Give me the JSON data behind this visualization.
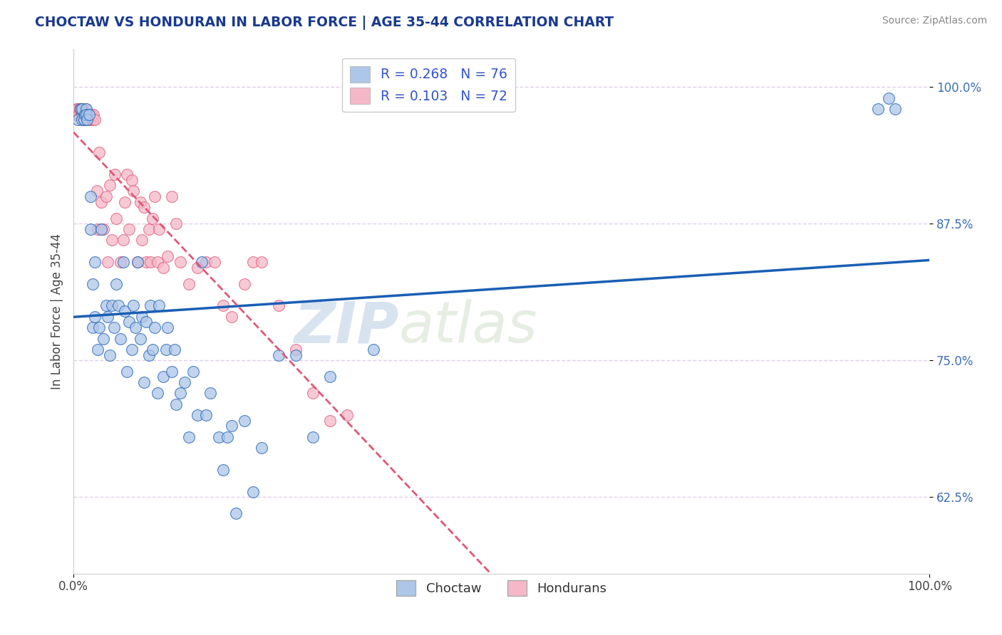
{
  "title": "CHOCTAW VS HONDURAN IN LABOR FORCE | AGE 35-44 CORRELATION CHART",
  "source": "Source: ZipAtlas.com",
  "ylabel": "In Labor Force | Age 35-44",
  "xlim": [
    0.0,
    1.0
  ],
  "ylim": [
    0.555,
    1.035
  ],
  "ytick_values": [
    0.625,
    0.75,
    0.875,
    1.0
  ],
  "ytick_labels": [
    "62.5%",
    "75.0%",
    "87.5%",
    "100.0%"
  ],
  "choctaw_R": 0.268,
  "choctaw_N": 76,
  "honduran_R": 0.103,
  "honduran_N": 72,
  "choctaw_color": "#aec6e8",
  "honduran_color": "#f4b8c8",
  "trend_choctaw_color": "#1a5fb4",
  "trend_honduran_color": "#e05878",
  "watermark_text": "ZIPatlas",
  "background_color": "#ffffff",
  "grid_color": "#e0d0e8",
  "legend_text_color": "#3355cc",
  "choctaw_x": [
    0.005,
    0.008,
    0.01,
    0.01,
    0.012,
    0.013,
    0.015,
    0.015,
    0.016,
    0.018,
    0.02,
    0.02,
    0.022,
    0.022,
    0.025,
    0.025,
    0.028,
    0.03,
    0.032,
    0.035,
    0.038,
    0.04,
    0.042,
    0.045,
    0.047,
    0.05,
    0.052,
    0.055,
    0.058,
    0.06,
    0.062,
    0.065,
    0.068,
    0.07,
    0.072,
    0.075,
    0.078,
    0.08,
    0.082,
    0.085,
    0.088,
    0.09,
    0.092,
    0.095,
    0.098,
    0.1,
    0.105,
    0.108,
    0.11,
    0.115,
    0.118,
    0.12,
    0.125,
    0.13,
    0.135,
    0.14,
    0.145,
    0.15,
    0.155,
    0.16,
    0.17,
    0.175,
    0.18,
    0.185,
    0.19,
    0.2,
    0.21,
    0.22,
    0.24,
    0.26,
    0.28,
    0.3,
    0.35,
    0.94,
    0.952,
    0.96
  ],
  "choctaw_y": [
    0.97,
    0.98,
    0.97,
    0.98,
    0.97,
    0.975,
    0.98,
    0.975,
    0.97,
    0.975,
    0.87,
    0.9,
    0.78,
    0.82,
    0.79,
    0.84,
    0.76,
    0.78,
    0.87,
    0.77,
    0.8,
    0.79,
    0.755,
    0.8,
    0.78,
    0.82,
    0.8,
    0.77,
    0.84,
    0.795,
    0.74,
    0.785,
    0.76,
    0.8,
    0.78,
    0.84,
    0.77,
    0.79,
    0.73,
    0.785,
    0.755,
    0.8,
    0.76,
    0.78,
    0.72,
    0.8,
    0.735,
    0.76,
    0.78,
    0.74,
    0.76,
    0.71,
    0.72,
    0.73,
    0.68,
    0.74,
    0.7,
    0.84,
    0.7,
    0.72,
    0.68,
    0.65,
    0.68,
    0.69,
    0.61,
    0.695,
    0.63,
    0.67,
    0.755,
    0.755,
    0.68,
    0.735,
    0.76,
    0.98,
    0.99,
    0.98
  ],
  "honduran_x": [
    0.002,
    0.003,
    0.004,
    0.005,
    0.006,
    0.007,
    0.008,
    0.009,
    0.01,
    0.01,
    0.011,
    0.012,
    0.013,
    0.014,
    0.015,
    0.016,
    0.017,
    0.018,
    0.019,
    0.02,
    0.021,
    0.022,
    0.023,
    0.025,
    0.027,
    0.028,
    0.03,
    0.032,
    0.035,
    0.038,
    0.04,
    0.042,
    0.045,
    0.048,
    0.05,
    0.055,
    0.058,
    0.06,
    0.062,
    0.065,
    0.068,
    0.07,
    0.075,
    0.078,
    0.08,
    0.082,
    0.085,
    0.088,
    0.09,
    0.092,
    0.095,
    0.098,
    0.1,
    0.105,
    0.11,
    0.115,
    0.12,
    0.125,
    0.135,
    0.145,
    0.155,
    0.165,
    0.175,
    0.185,
    0.2,
    0.21,
    0.22,
    0.24,
    0.26,
    0.28,
    0.3,
    0.32
  ],
  "honduran_y": [
    0.975,
    0.98,
    0.975,
    0.98,
    0.975,
    0.98,
    0.98,
    0.975,
    0.98,
    0.975,
    0.97,
    0.975,
    0.97,
    0.98,
    0.975,
    0.97,
    0.975,
    0.97,
    0.975,
    0.97,
    0.975,
    0.97,
    0.975,
    0.97,
    0.905,
    0.87,
    0.94,
    0.895,
    0.87,
    0.9,
    0.84,
    0.91,
    0.86,
    0.92,
    0.88,
    0.84,
    0.86,
    0.895,
    0.92,
    0.87,
    0.915,
    0.905,
    0.84,
    0.895,
    0.86,
    0.89,
    0.84,
    0.87,
    0.84,
    0.88,
    0.9,
    0.84,
    0.87,
    0.835,
    0.845,
    0.9,
    0.875,
    0.84,
    0.82,
    0.835,
    0.84,
    0.84,
    0.8,
    0.79,
    0.82,
    0.84,
    0.84,
    0.8,
    0.76,
    0.72,
    0.695,
    0.7
  ]
}
